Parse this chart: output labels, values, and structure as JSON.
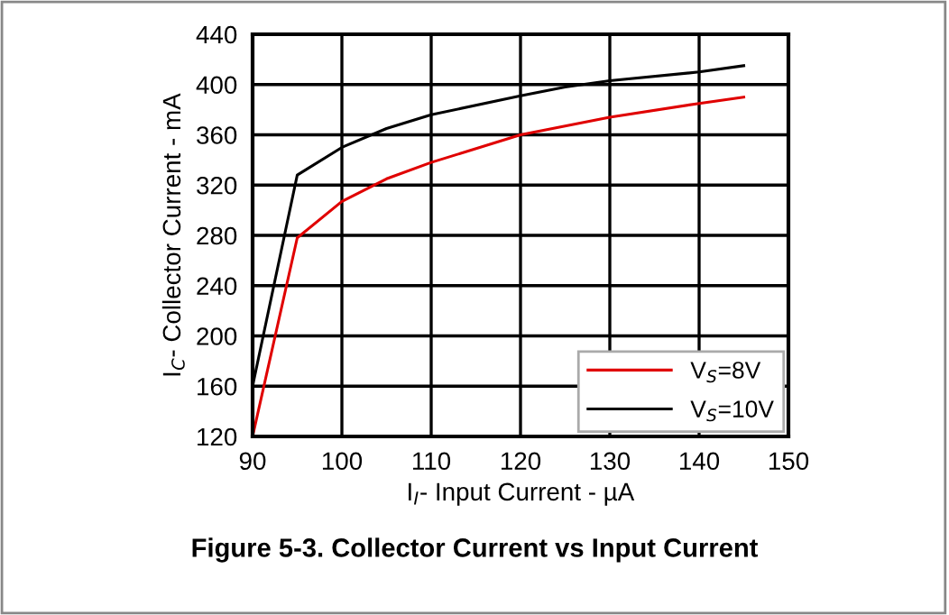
{
  "chart_data": {
    "type": "line",
    "title": "Figure 5-3. Collector Current vs Input Current",
    "xlabel": "I$_{I}$- Input Current - µA",
    "ylabel": "I$_{C}$- Collector Current - mA",
    "xlim": [
      90,
      150
    ],
    "xticks": [
      90,
      100,
      110,
      120,
      130,
      140,
      150
    ],
    "ylim": [
      120,
      440
    ],
    "yticks": [
      120,
      160,
      200,
      240,
      280,
      320,
      360,
      400,
      440
    ],
    "grid": true,
    "legend": "bottom right",
    "marker": "none",
    "line_style": "solid",
    "series": [
      {
        "name": "V$_{S}$=8V",
        "color": "#e00000",
        "x": [
          90,
          95,
          100,
          105,
          110,
          120,
          130,
          140,
          145
        ],
        "values": [
          120,
          278,
          307,
          325,
          338,
          360,
          374,
          385,
          390
        ]
      },
      {
        "name": "V$_{S}$=10V",
        "color": "#000000",
        "x": [
          90,
          95,
          100,
          105,
          110,
          120,
          125,
          130,
          140,
          145
        ],
        "values": [
          160,
          328,
          350,
          365,
          376,
          391,
          398,
          403,
          410,
          415
        ]
      }
    ]
  }
}
